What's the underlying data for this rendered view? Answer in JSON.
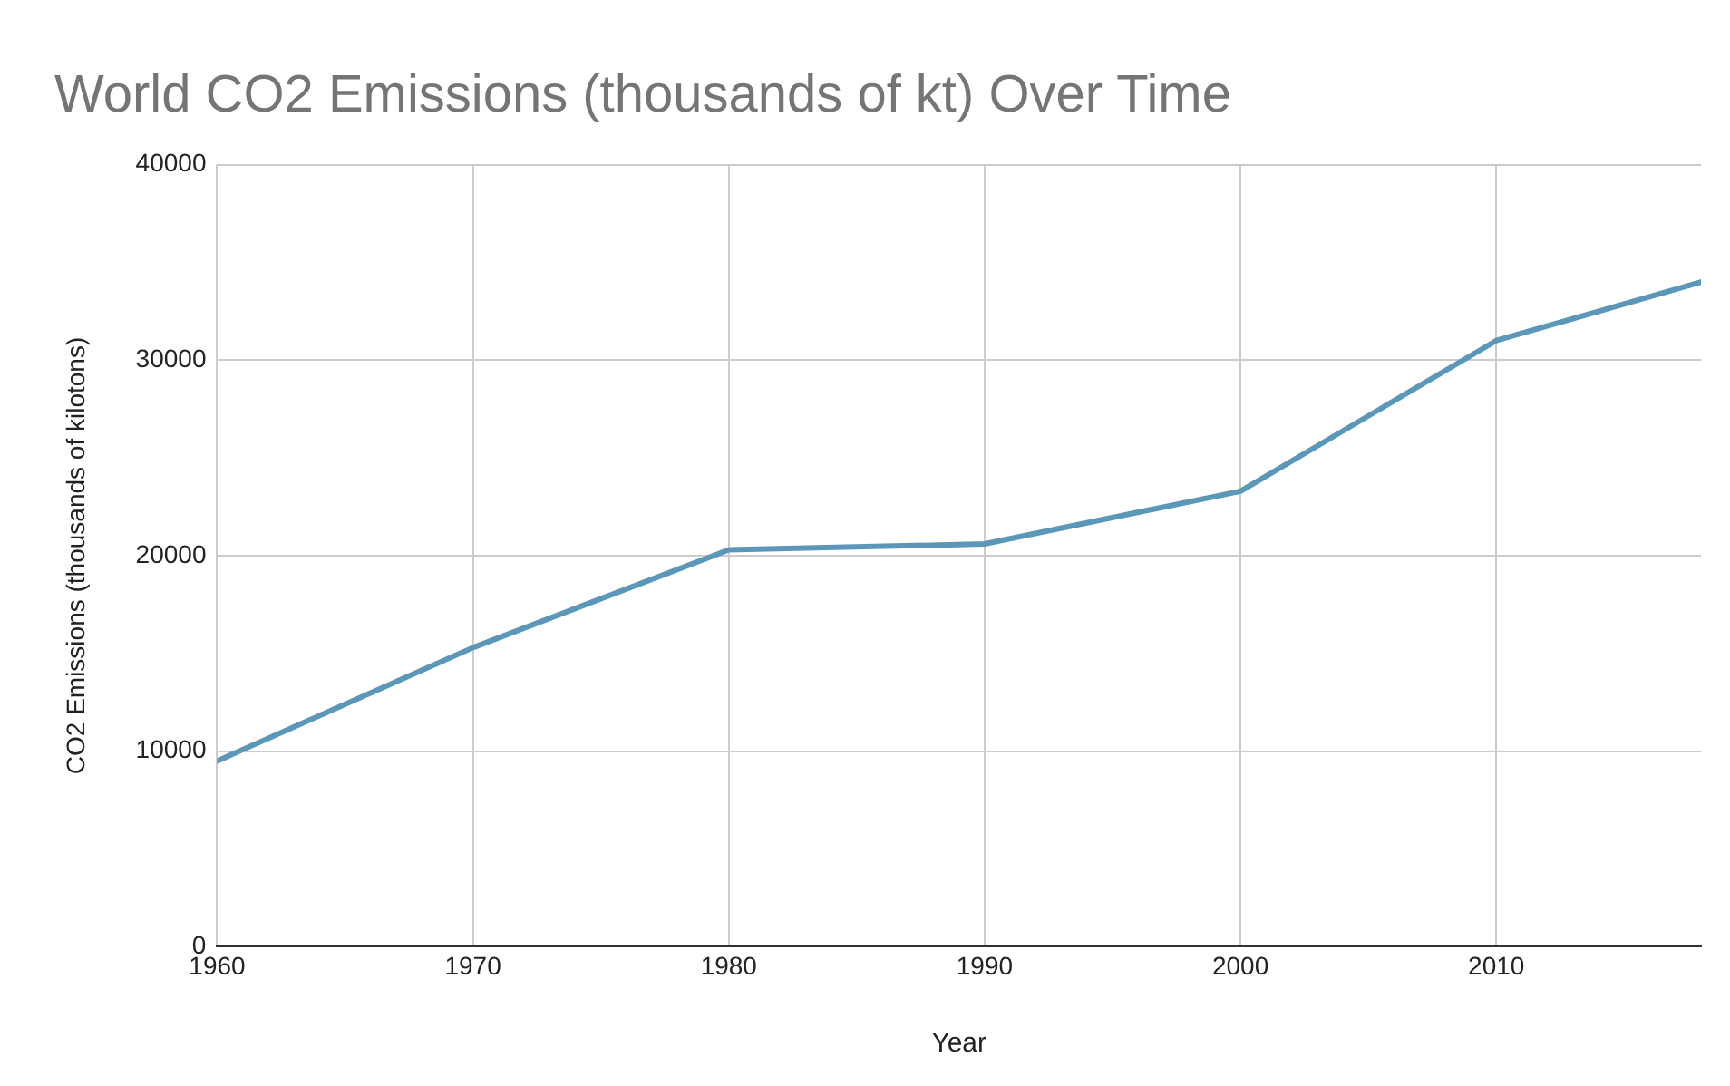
{
  "chart_data": {
    "type": "line",
    "title": "World CO2 Emissions (thousands of kt) Over Time",
    "xlabel": "Year",
    "ylabel": "CO2 Emissions (thousands of kilotons)",
    "x": [
      1960,
      1970,
      1980,
      1990,
      2000,
      2010,
      2018
    ],
    "series": [
      {
        "color": "#5b97b8",
        "values": [
          9500,
          15300,
          20300,
          20600,
          23300,
          31000,
          34000
        ]
      }
    ],
    "xlim": [
      1960,
      2018
    ],
    "xticks": [
      1960,
      1970,
      1980,
      1990,
      2000,
      2010
    ],
    "ylim": [
      0,
      40000
    ],
    "yticks": [
      0,
      10000,
      20000,
      30000,
      40000
    ],
    "grid": true,
    "legend": false,
    "marker": "none",
    "line_style": "solid"
  }
}
